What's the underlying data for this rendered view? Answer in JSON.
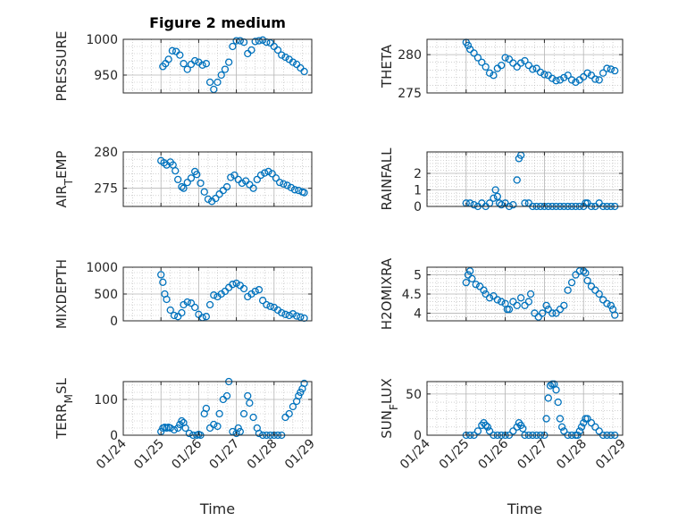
{
  "figure": {
    "title": "Figure 2 medium",
    "xlabel": "Time"
  },
  "colors": {
    "marker": "#0072BD",
    "axis": "#262626",
    "grid": "#b4b4b4"
  },
  "chart_data": [
    {
      "type": "scatter",
      "panel": "pressure",
      "ylabel": "PRESSURE",
      "xlabel": "",
      "xlim": [
        "01/24",
        "01/29"
      ],
      "ylim": [
        925,
        1000
      ],
      "yticks": [
        950,
        1000
      ],
      "x_ticks": [
        "01/24",
        "01/25",
        "01/26",
        "01/27",
        "01/28",
        "01/29"
      ],
      "x": [
        25.05,
        25.12,
        25.2,
        25.3,
        25.4,
        25.5,
        25.6,
        25.7,
        25.8,
        25.9,
        26.0,
        26.1,
        26.2,
        26.3,
        26.4,
        26.5,
        26.6,
        26.7,
        26.8,
        26.9,
        27.0,
        27.1,
        27.2,
        27.3,
        27.4,
        27.5,
        27.6,
        27.7,
        27.8,
        27.9,
        28.0,
        28.1,
        28.2,
        28.3,
        28.4,
        28.5,
        28.6,
        28.7,
        28.8
      ],
      "y": [
        962,
        966,
        972,
        984,
        983,
        978,
        966,
        958,
        965,
        970,
        968,
        964,
        966,
        940,
        930,
        940,
        950,
        958,
        968,
        990,
        998,
        998,
        996,
        980,
        985,
        997,
        998,
        999,
        996,
        995,
        990,
        985,
        978,
        975,
        972,
        968,
        965,
        960,
        955
      ]
    },
    {
      "type": "scatter",
      "panel": "theta",
      "ylabel": "THETA",
      "xlim": [
        "01/24",
        "01/29"
      ],
      "ylim": [
        275,
        282
      ],
      "yticks": [
        275,
        280
      ],
      "x": [
        25.0,
        25.05,
        25.1,
        25.2,
        25.3,
        25.4,
        25.5,
        25.6,
        25.7,
        25.8,
        25.9,
        26.0,
        26.1,
        26.2,
        26.3,
        26.4,
        26.5,
        26.6,
        26.7,
        26.8,
        26.9,
        27.0,
        27.1,
        27.2,
        27.3,
        27.4,
        27.5,
        27.6,
        27.7,
        27.8,
        27.9,
        28.0,
        28.1,
        28.2,
        28.3,
        28.4,
        28.5,
        28.6,
        28.7,
        28.8
      ],
      "y": [
        281.6,
        281.2,
        280.7,
        280.2,
        279.6,
        279.0,
        278.4,
        277.6,
        277.3,
        278.2,
        278.6,
        279.6,
        279.4,
        278.9,
        278.4,
        278.9,
        279.2,
        278.6,
        278.1,
        278.2,
        277.7,
        277.4,
        277.3,
        276.9,
        276.6,
        276.7,
        277.0,
        277.3,
        276.7,
        276.4,
        276.7,
        277.1,
        277.6,
        277.3,
        276.8,
        276.7,
        277.6,
        278.2,
        278.1,
        277.9
      ]
    },
    {
      "type": "scatter",
      "panel": "air_temp",
      "ylabel": "AIR_TEMP",
      "xlim": [
        "01/24",
        "01/29"
      ],
      "ylim": [
        272.5,
        280
      ],
      "yticks": [
        275,
        280
      ],
      "x": [
        25.0,
        25.08,
        25.15,
        25.25,
        25.32,
        25.38,
        25.45,
        25.55,
        25.6,
        25.7,
        25.8,
        25.9,
        25.95,
        26.05,
        26.15,
        26.25,
        26.35,
        26.45,
        26.55,
        26.65,
        26.75,
        26.85,
        26.95,
        27.05,
        27.15,
        27.25,
        27.35,
        27.45,
        27.55,
        27.65,
        27.75,
        27.85,
        27.95,
        28.05,
        28.15,
        28.25,
        28.35,
        28.45,
        28.55,
        28.65,
        28.75,
        28.8
      ],
      "y": [
        278.8,
        278.5,
        278.2,
        278.6,
        278.2,
        277.4,
        276.2,
        275.2,
        275.0,
        275.8,
        276.4,
        277.3,
        276.9,
        275.7,
        274.5,
        273.5,
        273.2,
        273.6,
        274.2,
        274.7,
        275.2,
        276.5,
        276.8,
        276.2,
        275.7,
        276.0,
        275.5,
        275.0,
        276.2,
        276.8,
        277.1,
        277.3,
        277.0,
        276.4,
        275.8,
        275.6,
        275.4,
        275.1,
        274.8,
        274.7,
        274.5,
        274.4
      ]
    },
    {
      "type": "scatter",
      "panel": "rainfall",
      "ylabel": "RAINFALL",
      "xlim": [
        "01/24",
        "01/29"
      ],
      "ylim": [
        0,
        3.3
      ],
      "yticks": [
        0,
        1,
        2
      ],
      "x": [
        25.0,
        25.1,
        25.2,
        25.3,
        25.4,
        25.5,
        25.6,
        25.7,
        25.75,
        25.8,
        25.85,
        25.9,
        26.0,
        26.1,
        26.2,
        26.3,
        26.35,
        26.4,
        26.5,
        26.6,
        26.7,
        26.8,
        26.9,
        27.0,
        27.1,
        27.2,
        27.3,
        27.4,
        27.5,
        27.6,
        27.7,
        27.8,
        27.9,
        28.0,
        28.05,
        28.1,
        28.2,
        28.3,
        28.4,
        28.5,
        28.6,
        28.7,
        28.8
      ],
      "y": [
        0.2,
        0.2,
        0.1,
        0,
        0.2,
        0,
        0.2,
        0.5,
        1.0,
        0.6,
        0.2,
        0.1,
        0.2,
        0,
        0.1,
        1.6,
        2.9,
        3.1,
        0.2,
        0.2,
        0,
        0,
        0,
        0,
        0,
        0,
        0,
        0,
        0,
        0,
        0,
        0,
        0,
        0,
        0.2,
        0.2,
        0,
        0,
        0.2,
        0,
        0,
        0,
        0
      ]
    },
    {
      "type": "scatter",
      "panel": "mixdepth",
      "ylabel": "MIXDEPTH",
      "xlim": [
        "01/24",
        "01/29"
      ],
      "ylim": [
        0,
        1000
      ],
      "yticks": [
        0,
        500,
        1000
      ],
      "x": [
        25.0,
        25.05,
        25.1,
        25.15,
        25.25,
        25.35,
        25.45,
        25.55,
        25.6,
        25.7,
        25.8,
        25.9,
        26.0,
        26.1,
        26.2,
        26.3,
        26.4,
        26.5,
        26.6,
        26.7,
        26.8,
        26.9,
        27.0,
        27.1,
        27.2,
        27.3,
        27.4,
        27.5,
        27.6,
        27.7,
        27.8,
        27.9,
        28.0,
        28.1,
        28.2,
        28.3,
        28.4,
        28.5,
        28.6,
        28.7,
        28.8
      ],
      "y": [
        860,
        720,
        500,
        400,
        200,
        100,
        80,
        150,
        300,
        350,
        330,
        250,
        120,
        60,
        80,
        300,
        480,
        450,
        500,
        550,
        620,
        680,
        700,
        660,
        600,
        450,
        500,
        550,
        580,
        380,
        300,
        270,
        250,
        200,
        150,
        120,
        100,
        130,
        90,
        70,
        50
      ]
    },
    {
      "type": "scatter",
      "panel": "h2omixra",
      "ylabel": "H2OMIXRA",
      "xlim": [
        "01/24",
        "01/29"
      ],
      "ylim": [
        3.8,
        5.2
      ],
      "yticks": [
        4,
        4.5,
        5
      ],
      "x": [
        25.0,
        25.05,
        25.1,
        25.15,
        25.25,
        25.35,
        25.45,
        25.5,
        25.6,
        25.7,
        25.8,
        25.9,
        26.0,
        26.05,
        26.1,
        26.2,
        26.3,
        26.4,
        26.5,
        26.6,
        26.65,
        26.75,
        26.85,
        26.95,
        27.05,
        27.1,
        27.2,
        27.3,
        27.4,
        27.5,
        27.6,
        27.7,
        27.8,
        27.9,
        28.0,
        28.05,
        28.1,
        28.2,
        28.3,
        28.4,
        28.5,
        28.6,
        28.7,
        28.75,
        28.8
      ],
      "y": [
        4.8,
        5.0,
        5.1,
        4.9,
        4.75,
        4.7,
        4.6,
        4.5,
        4.4,
        4.45,
        4.35,
        4.3,
        4.25,
        4.1,
        4.1,
        4.3,
        4.2,
        4.4,
        4.2,
        4.3,
        4.5,
        4.0,
        3.9,
        4.0,
        4.2,
        4.1,
        4.0,
        4.0,
        4.1,
        4.2,
        4.6,
        4.8,
        5.0,
        5.1,
        5.1,
        5.05,
        4.85,
        4.7,
        4.6,
        4.5,
        4.35,
        4.25,
        4.2,
        4.1,
        3.95
      ]
    },
    {
      "type": "scatter",
      "panel": "terr_msl",
      "ylabel": "TERR_MSL",
      "xlim": [
        "01/24",
        "01/29"
      ],
      "ylim": [
        0,
        150
      ],
      "yticks": [
        0,
        100
      ],
      "x": [
        25.0,
        25.05,
        25.1,
        25.15,
        25.2,
        25.25,
        25.35,
        25.45,
        25.5,
        25.55,
        25.6,
        25.65,
        25.75,
        25.85,
        25.95,
        26.0,
        26.05,
        26.15,
        26.2,
        26.3,
        26.4,
        26.5,
        26.55,
        26.65,
        26.75,
        26.8,
        26.9,
        27.0,
        27.05,
        27.1,
        27.2,
        27.3,
        27.35,
        27.45,
        27.55,
        27.6,
        27.7,
        27.8,
        27.9,
        28.0,
        28.1,
        28.2,
        28.3,
        28.4,
        28.5,
        28.6,
        28.65,
        28.7,
        28.75,
        28.8
      ],
      "y": [
        10,
        20,
        22,
        20,
        22,
        20,
        15,
        20,
        30,
        40,
        35,
        20,
        5,
        0,
        0,
        2,
        0,
        60,
        75,
        20,
        30,
        25,
        60,
        100,
        110,
        150,
        10,
        5,
        20,
        10,
        60,
        110,
        90,
        50,
        20,
        5,
        0,
        0,
        0,
        0,
        0,
        0,
        50,
        60,
        80,
        95,
        110,
        120,
        130,
        145
      ]
    },
    {
      "type": "scatter",
      "panel": "sun_flux",
      "ylabel": "SUN_FLUX",
      "xlim": [
        "01/24",
        "01/29"
      ],
      "ylim": [
        0,
        65
      ],
      "yticks": [
        0,
        50
      ],
      "x": [
        25.0,
        25.1,
        25.2,
        25.3,
        25.4,
        25.45,
        25.5,
        25.55,
        25.6,
        25.7,
        25.8,
        25.9,
        26.0,
        26.1,
        26.2,
        26.3,
        26.35,
        26.4,
        26.45,
        26.5,
        26.6,
        26.7,
        26.8,
        26.9,
        27.0,
        27.05,
        27.1,
        27.15,
        27.2,
        27.25,
        27.3,
        27.35,
        27.4,
        27.45,
        27.5,
        27.6,
        27.7,
        27.8,
        27.85,
        27.9,
        27.95,
        28.0,
        28.05,
        28.1,
        28.2,
        28.3,
        28.4,
        28.5,
        28.6,
        28.7,
        28.8
      ],
      "y": [
        0,
        0,
        0,
        5,
        12,
        15,
        12,
        10,
        5,
        0,
        0,
        0,
        0,
        0,
        5,
        10,
        15,
        12,
        8,
        0,
        0,
        0,
        0,
        0,
        0,
        20,
        45,
        60,
        62,
        62,
        55,
        40,
        20,
        10,
        5,
        0,
        0,
        0,
        0,
        5,
        10,
        15,
        20,
        20,
        15,
        10,
        5,
        0,
        0,
        0,
        0
      ]
    }
  ]
}
